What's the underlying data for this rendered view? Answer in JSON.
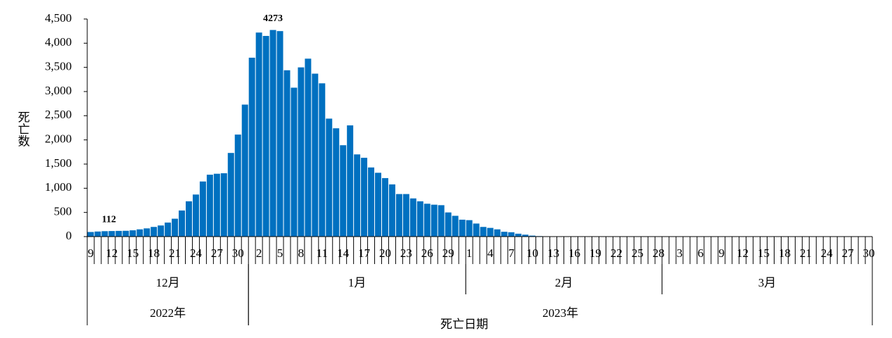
{
  "chart_data": {
    "type": "bar",
    "x_label": "死亡日期",
    "y_label": "死亡数",
    "color": "#0070c0",
    "x": [
      "2022-12-09",
      "2022-12-10",
      "2022-12-11",
      "2022-12-12",
      "2022-12-13",
      "2022-12-14",
      "2022-12-15",
      "2022-12-16",
      "2022-12-17",
      "2022-12-18",
      "2022-12-19",
      "2022-12-20",
      "2022-12-21",
      "2022-12-22",
      "2022-12-23",
      "2022-12-24",
      "2022-12-25",
      "2022-12-26",
      "2022-12-27",
      "2022-12-28",
      "2022-12-29",
      "2022-12-30",
      "2022-12-31",
      "2023-01-01",
      "2023-01-02",
      "2023-01-03",
      "2023-01-04",
      "2023-01-05",
      "2023-01-06",
      "2023-01-07",
      "2023-01-08",
      "2023-01-09",
      "2023-01-10",
      "2023-01-11",
      "2023-01-12",
      "2023-01-13",
      "2023-01-14",
      "2023-01-15",
      "2023-01-16",
      "2023-01-17",
      "2023-01-18",
      "2023-01-19",
      "2023-01-20",
      "2023-01-21",
      "2023-01-22",
      "2023-01-23",
      "2023-01-24",
      "2023-01-25",
      "2023-01-26",
      "2023-01-27",
      "2023-01-28",
      "2023-01-29",
      "2023-01-30",
      "2023-01-31",
      "2023-02-01",
      "2023-02-02",
      "2023-02-03",
      "2023-02-04",
      "2023-02-05",
      "2023-02-06",
      "2023-02-07",
      "2023-02-08",
      "2023-02-09",
      "2023-02-10",
      "2023-02-11",
      "2023-02-12",
      "2023-02-13",
      "2023-02-14",
      "2023-02-15",
      "2023-02-16",
      "2023-02-17",
      "2023-02-18",
      "2023-02-19",
      "2023-02-20",
      "2023-02-21",
      "2023-02-22",
      "2023-02-23",
      "2023-02-24",
      "2023-02-25",
      "2023-02-26",
      "2023-02-27",
      "2023-02-28",
      "2023-03-01",
      "2023-03-02",
      "2023-03-03",
      "2023-03-04",
      "2023-03-05",
      "2023-03-06",
      "2023-03-07",
      "2023-03-08",
      "2023-03-09",
      "2023-03-10",
      "2023-03-11",
      "2023-03-12",
      "2023-03-13",
      "2023-03-14",
      "2023-03-15",
      "2023-03-16",
      "2023-03-17",
      "2023-03-18",
      "2023-03-19",
      "2023-03-20",
      "2023-03-21",
      "2023-03-22",
      "2023-03-23",
      "2023-03-24",
      "2023-03-25",
      "2023-03-26",
      "2023-03-27",
      "2023-03-28",
      "2023-03-29",
      "2023-03-30"
    ],
    "values": [
      95,
      105,
      112,
      115,
      118,
      120,
      130,
      150,
      170,
      200,
      230,
      290,
      370,
      540,
      730,
      870,
      1140,
      1280,
      1300,
      1310,
      1730,
      2110,
      2730,
      3700,
      4220,
      4150,
      4273,
      4250,
      3440,
      3080,
      3500,
      3680,
      3370,
      3170,
      2440,
      2240,
      1890,
      2300,
      1700,
      1630,
      1430,
      1320,
      1210,
      1080,
      880,
      880,
      790,
      730,
      680,
      660,
      650,
      500,
      430,
      350,
      340,
      270,
      200,
      180,
      150,
      100,
      90,
      60,
      40,
      20,
      10,
      0,
      0,
      0,
      0,
      0,
      0,
      0,
      0,
      0,
      0,
      0,
      0,
      0,
      0,
      0,
      0,
      0,
      0,
      0,
      0,
      0,
      0,
      0,
      0,
      0,
      0,
      0,
      0,
      0,
      0,
      0,
      0,
      0,
      0,
      0,
      0,
      0,
      0,
      0,
      0,
      0,
      0,
      0,
      0,
      0,
      0,
      0
    ],
    "value_labels": [
      null,
      null,
      "112",
      null,
      null,
      null,
      null,
      null,
      null,
      null,
      null,
      null,
      null,
      null,
      null,
      null,
      null,
      null,
      null,
      null,
      null,
      null,
      null,
      null,
      null,
      null,
      "4273",
      null,
      null,
      null,
      null,
      null,
      null,
      null,
      null,
      null,
      null,
      null,
      null,
      null,
      null,
      null,
      null,
      null,
      null,
      null,
      null,
      null,
      null,
      null,
      null,
      null,
      null,
      null,
      null,
      null,
      null,
      null,
      null,
      null,
      null,
      null,
      null,
      null,
      null,
      null,
      null,
      null,
      null,
      null,
      null,
      null,
      null,
      null,
      null,
      null,
      null,
      null,
      null,
      null,
      null,
      null,
      null,
      null,
      null,
      null,
      null,
      null,
      null,
      null,
      null,
      null,
      null,
      null,
      null,
      null,
      null,
      null,
      null,
      null,
      null,
      null,
      null,
      null,
      null,
      null,
      null,
      null,
      null,
      null,
      null,
      null
    ],
    "xticks": [
      {
        "value": "2022-12-09",
        "label": "9"
      },
      {
        "value": "2022-12-12",
        "label": "12"
      },
      {
        "value": "2022-12-15",
        "label": "15"
      },
      {
        "value": "2022-12-18",
        "label": "18"
      },
      {
        "value": "2022-12-21",
        "label": "21"
      },
      {
        "value": "2022-12-24",
        "label": "24"
      },
      {
        "value": "2022-12-27",
        "label": "27"
      },
      {
        "value": "2022-12-30",
        "label": "30"
      },
      {
        "value": "2023-01-02",
        "label": "2"
      },
      {
        "value": "2023-01-05",
        "label": "5"
      },
      {
        "value": "2023-01-08",
        "label": "8"
      },
      {
        "value": "2023-01-11",
        "label": "11"
      },
      {
        "value": "2023-01-14",
        "label": "14"
      },
      {
        "value": "2023-01-17",
        "label": "17"
      },
      {
        "value": "2023-01-20",
        "label": "20"
      },
      {
        "value": "2023-01-23",
        "label": "23"
      },
      {
        "value": "2023-01-26",
        "label": "26"
      },
      {
        "value": "2023-01-29",
        "label": "29"
      },
      {
        "value": "2023-02-01",
        "label": "1"
      },
      {
        "value": "2023-02-04",
        "label": "4"
      },
      {
        "value": "2023-02-07",
        "label": "7"
      },
      {
        "value": "2023-02-10",
        "label": "10"
      },
      {
        "value": "2023-02-13",
        "label": "13"
      },
      {
        "value": "2023-02-16",
        "label": "16"
      },
      {
        "value": "2023-02-19",
        "label": "19"
      },
      {
        "value": "2023-02-22",
        "label": "22"
      },
      {
        "value": "2023-02-25",
        "label": "25"
      },
      {
        "value": "2023-02-28",
        "label": "28"
      },
      {
        "value": "2023-03-03",
        "label": "3"
      },
      {
        "value": "2023-03-06",
        "label": "6"
      },
      {
        "value": "2023-03-09",
        "label": "9"
      },
      {
        "value": "2023-03-12",
        "label": "12"
      },
      {
        "value": "2023-03-15",
        "label": "15"
      },
      {
        "value": "2023-03-18",
        "label": "18"
      },
      {
        "value": "2023-03-21",
        "label": "21"
      },
      {
        "value": "2023-03-24",
        "label": "24"
      },
      {
        "value": "2023-03-27",
        "label": "27"
      },
      {
        "value": "2023-03-30",
        "label": "30"
      }
    ],
    "month_labels": [
      "12月",
      "1月",
      "2月",
      "3月"
    ],
    "year_labels": [
      "2022年",
      "2023年"
    ],
    "ylim": [
      0,
      4500
    ],
    "yticks": [
      0,
      500,
      {
        "value": 1000,
        "label": "1,000"
      },
      {
        "value": 1500,
        "label": "1,500"
      },
      {
        "value": 2000,
        "label": "2,000"
      },
      {
        "value": 2500,
        "label": "2,500"
      },
      {
        "value": 3000,
        "label": "3,000"
      },
      {
        "value": 3500,
        "label": "3,500"
      },
      {
        "value": 4000,
        "label": "4,000"
      },
      {
        "value": 4500,
        "label": "4,500"
      }
    ],
    "grid": false
  }
}
